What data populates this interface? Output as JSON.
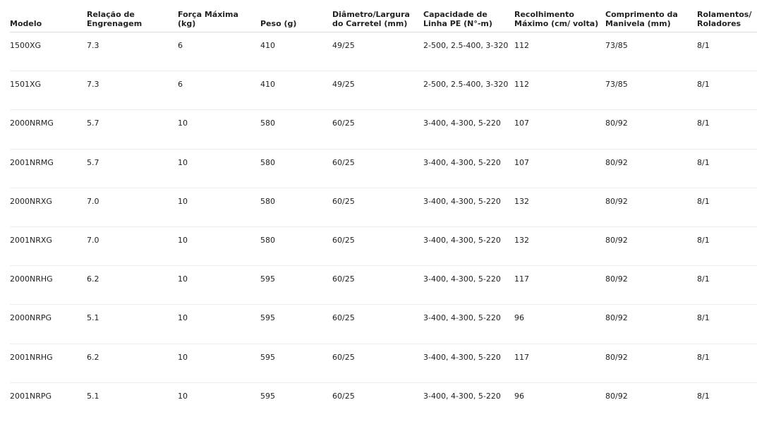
{
  "table": {
    "headers": [
      "Modelo",
      "Relação de Engrenagem",
      "Força Máxima (kg)",
      "Peso (g)",
      "Diâmetro/Largura do Carretel (mm)",
      "Capacidade de Linha PE (N°-m)",
      "Recolhimento Máximo (cm/ volta)",
      "Comprimento da Manivela (mm)",
      "Rolamentos/ Roladores"
    ],
    "rows": [
      [
        "1500XG",
        "7.3",
        "6",
        "410",
        "49/25",
        "2-500, 2.5-400, 3-320",
        "112",
        "73/85",
        "8/1"
      ],
      [
        "1501XG",
        "7.3",
        "6",
        "410",
        "49/25",
        "2-500, 2.5-400, 3-320",
        "112",
        "73/85",
        "8/1"
      ],
      [
        "2000NRMG",
        "5.7",
        "10",
        "580",
        "60/25",
        "3-400, 4-300, 5-220",
        "107",
        "80/92",
        "8/1"
      ],
      [
        "2001NRMG",
        "5.7",
        "10",
        "580",
        "60/25",
        "3-400, 4-300, 5-220",
        "107",
        "80/92",
        "8/1"
      ],
      [
        "2000NRXG",
        "7.0",
        "10",
        "580",
        "60/25",
        "3-400, 4-300, 5-220",
        "132",
        "80/92",
        "8/1"
      ],
      [
        "2001NRXG",
        "7.0",
        "10",
        "580",
        "60/25",
        "3-400, 4-300, 5-220",
        "132",
        "80/92",
        "8/1"
      ],
      [
        "2000NRHG",
        "6.2",
        "10",
        "595",
        "60/25",
        "3-400, 4-300, 5-220",
        "117",
        "80/92",
        "8/1"
      ],
      [
        "2000NRPG",
        "5.1",
        "10",
        "595",
        "60/25",
        "3-400, 4-300, 5-220",
        "96",
        "80/92",
        "8/1"
      ],
      [
        "2001NRHG",
        "6.2",
        "10",
        "595",
        "60/25",
        "3-400, 4-300, 5-220",
        "117",
        "80/92",
        "8/1"
      ],
      [
        "2001NRPG",
        "5.1",
        "10",
        "595",
        "60/25",
        "3-400, 4-300, 5-220",
        "96",
        "80/92",
        "8/1"
      ]
    ]
  }
}
